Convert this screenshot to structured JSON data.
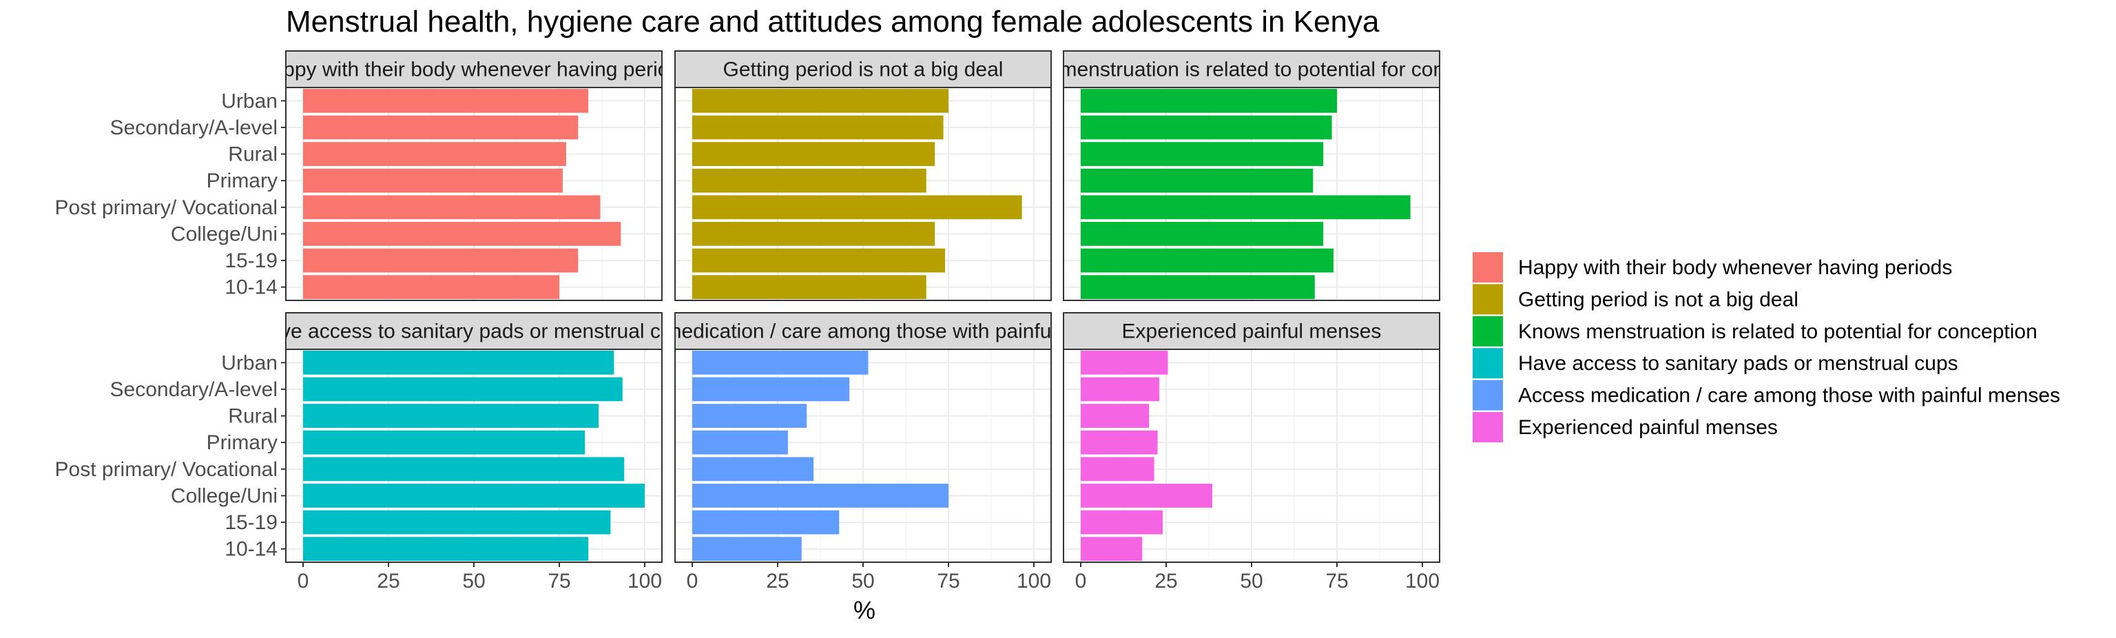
{
  "chart_data": {
    "type": "bar",
    "orientation": "horizontal",
    "title": "Menstrual health, hygiene care and attitudes among female adolescents in Kenya",
    "xlabel": "%",
    "ylabel": "",
    "xlim": [
      0,
      100
    ],
    "x_ticks": [
      "0",
      "25",
      "50",
      "75",
      "100"
    ],
    "grid": true,
    "legend_position": "right",
    "categories": [
      "Urban",
      "Secondary/A-level",
      "Rural",
      "Primary",
      "Post primary/ Vocational",
      "College/Uni",
      "15-19",
      "10-14"
    ],
    "series": [
      {
        "name": "Happy with their body whenever having periods",
        "color": "#F8766D",
        "values": [
          83.5,
          80.5,
          77,
          76,
          87,
          93,
          80.5,
          75
        ]
      },
      {
        "name": "Getting period is not a big deal",
        "color": "#B79F00",
        "values": [
          75,
          73.5,
          71,
          68.5,
          96.5,
          71,
          74,
          68.5
        ]
      },
      {
        "name": "Knows  menstruation is related to potential for conception",
        "color": "#00BA38",
        "values": [
          75,
          73.5,
          71,
          68,
          96.5,
          71,
          74,
          68.5
        ]
      },
      {
        "name": "Have access to sanitary pads or menstrual cups",
        "color": "#00BFC4",
        "values": [
          91,
          93.5,
          86.5,
          82.5,
          94,
          100,
          90,
          83.5
        ]
      },
      {
        "name": "Access medication / care among those with painful menses",
        "color": "#619CFF",
        "values": [
          51.5,
          46,
          33.5,
          28,
          35.5,
          75,
          43,
          32
        ]
      },
      {
        "name": "Experienced painful menses",
        "color": "#F564E3",
        "values": [
          25.5,
          23,
          20,
          22.5,
          21.5,
          38.5,
          24,
          18
        ]
      }
    ]
  }
}
